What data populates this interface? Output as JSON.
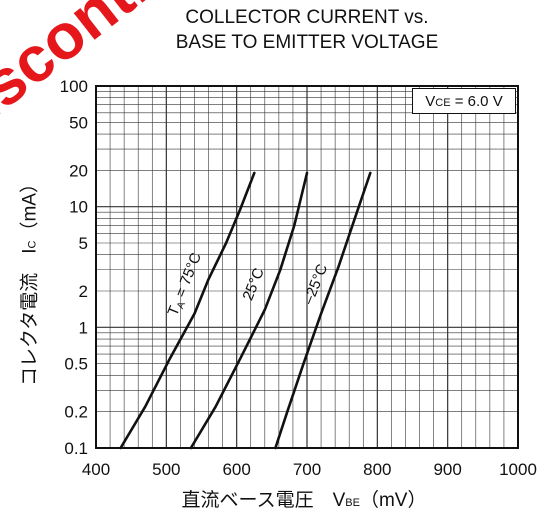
{
  "title_line1": "COLLECTOR CURRENT vs.",
  "title_line2": "BASE TO EMITTER VOLTAGE",
  "ylabel_text": "コレクタ電流　I",
  "ylabel_sub": "C",
  "ylabel_unit": "（mA）",
  "xlabel_text": "直流ベース電圧　V",
  "xlabel_sub": "BE",
  "xlabel_unit": "（mV）",
  "condition_prefix": "V",
  "condition_sub": "CE",
  "condition_value": "= 6.0 V",
  "curve_label_prefix": "T",
  "curve_label_sub": "A",
  "watermark_text": "Discontinued Product",
  "colors": {
    "curve": "#111111",
    "grid": "#333333",
    "watermark": "#e6171b"
  },
  "chart_data": {
    "type": "line",
    "xscale": "linear",
    "yscale": "log",
    "xlim": [
      400,
      1000
    ],
    "ylim": [
      0.1,
      100
    ],
    "x_ticks": [
      400,
      500,
      600,
      700,
      800,
      900,
      1000
    ],
    "y_ticks": [
      0.1,
      0.2,
      0.5,
      1,
      2,
      5,
      10,
      20,
      50,
      100
    ],
    "grid": true,
    "series": [
      {
        "name": "T_A = 75°C",
        "label": " = 75°C",
        "x": [
          435,
          470,
          505,
          540,
          560,
          585,
          605,
          625
        ],
        "y": [
          0.1,
          0.22,
          0.55,
          1.3,
          2.5,
          5,
          9.5,
          19
        ]
      },
      {
        "name": "25°C",
        "label": "25°C",
        "x": [
          535,
          570,
          605,
          640,
          662,
          682,
          700
        ],
        "y": [
          0.1,
          0.22,
          0.55,
          1.4,
          3,
          7,
          19
        ]
      },
      {
        "name": "-25°C",
        "label": "–25°C",
        "x": [
          655,
          672,
          695,
          720,
          745,
          768,
          790
        ],
        "y": [
          0.1,
          0.2,
          0.5,
          1.3,
          3.2,
          8,
          19
        ]
      }
    ]
  }
}
